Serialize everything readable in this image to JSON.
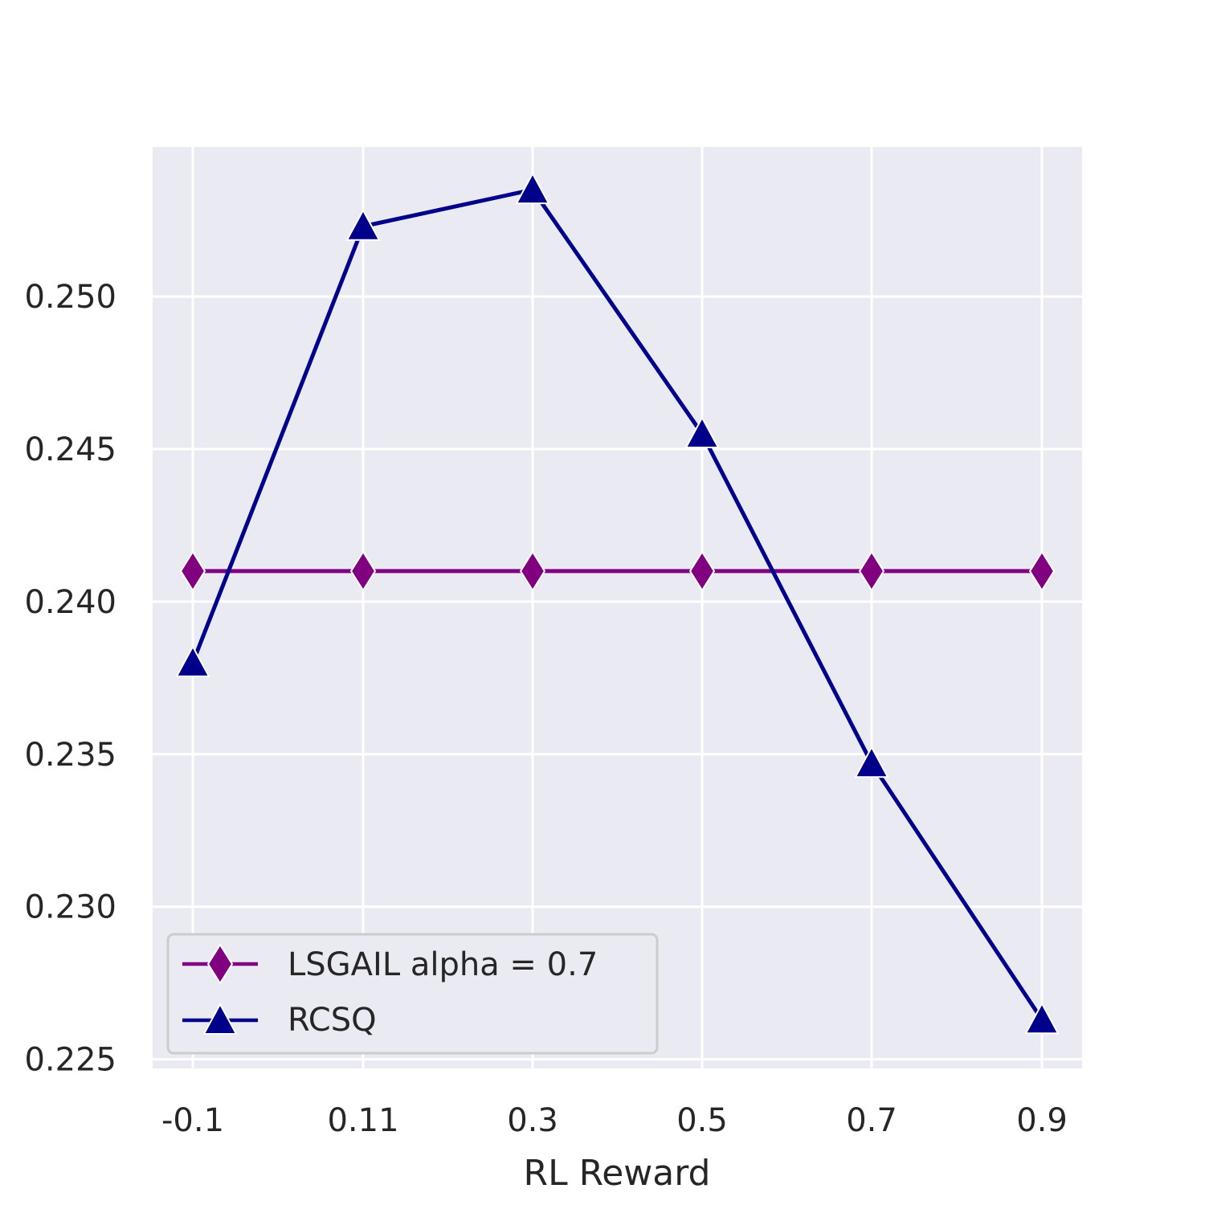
{
  "chart_data": {
    "type": "line",
    "title": "",
    "xlabel": "RL Reward",
    "ylabel": "",
    "categories": [
      "-0.1",
      "0.11",
      "0.3",
      "0.5",
      "0.7",
      "0.9"
    ],
    "yticks": [
      "0.225",
      "0.230",
      "0.235",
      "0.240",
      "0.245",
      "0.250"
    ],
    "ytick_values": [
      0.225,
      0.23,
      0.235,
      0.24,
      0.245,
      0.25
    ],
    "ylim": [
      0.2247,
      0.2549
    ],
    "grid": true,
    "legend_position": "lower-left",
    "series": [
      {
        "name": "LSGAIL alpha = 0.7",
        "marker": "diamond",
        "color": "#800080",
        "values": [
          0.241,
          0.241,
          0.241,
          0.241,
          0.241,
          0.241
        ]
      },
      {
        "name": "RCSQ",
        "marker": "triangle",
        "color": "#00008B",
        "values": [
          0.238,
          0.2523,
          0.2535,
          0.2455,
          0.2347,
          0.2263
        ]
      }
    ],
    "colors": {
      "plot_background": "#EAEAF2",
      "grid": "#FFFFFF",
      "text": "#262626"
    }
  }
}
